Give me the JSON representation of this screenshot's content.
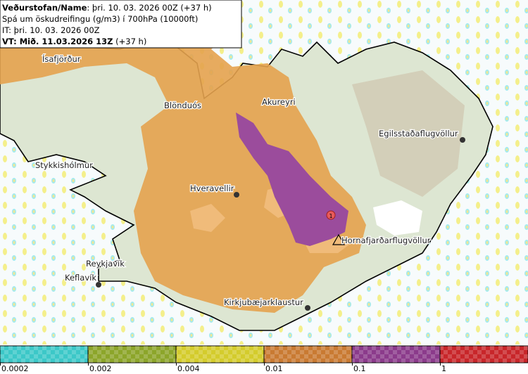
{
  "header": {
    "source": "Veðurstofan/Name",
    "run": ": þri. 10. 03. 2026 00Z (+37 h)",
    "product": "Spá um öskudreifingu (g/m3) í 700hPa (10000ft)",
    "issue_time": "IT: þri. 10. 03. 2026 00Z",
    "valid_time": "VT: Mið. 11.03.2026 13Z",
    "valid_offset": " (+37 h)"
  },
  "places": [
    "Ísafjörður",
    "Blönduós",
    "Akureyri",
    "Egilsstaðaflugvöllur",
    "Stykkishólmur",
    "Hveravellir",
    "Hornafjarðarflugvöllur",
    "Reykjavík",
    "Keflavík",
    "Kirkjubæjarklaustur"
  ],
  "volcano_label": "1",
  "colorbar": {
    "colors": [
      "#3cc8c8",
      "#8ca52a",
      "#d4cc2c",
      "#c97a32",
      "#8b3b8b",
      "#c8262a"
    ],
    "ticks": [
      0.0002,
      0.002,
      0.004,
      0.01,
      0.1,
      1
    ]
  }
}
